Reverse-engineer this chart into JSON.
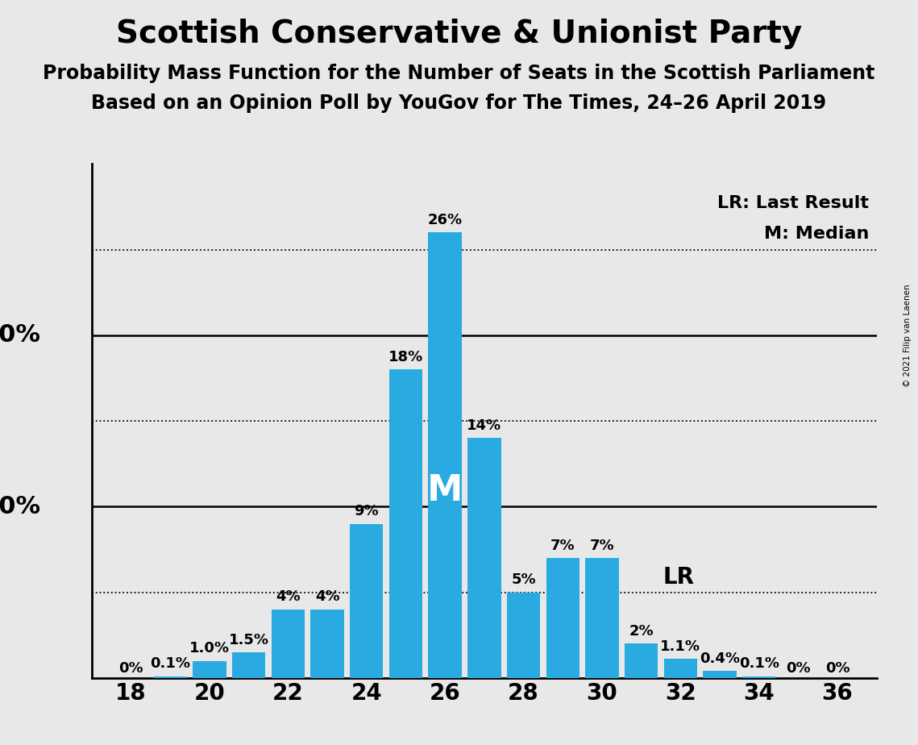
{
  "title": "Scottish Conservative & Unionist Party",
  "subtitle1": "Probability Mass Function for the Number of Seats in the Scottish Parliament",
  "subtitle2": "Based on an Opinion Poll by YouGov for The Times, 24–26 April 2019",
  "copyright": "© 2021 Filip van Laenen",
  "seats": [
    18,
    19,
    20,
    21,
    22,
    23,
    24,
    25,
    26,
    27,
    28,
    29,
    30,
    31,
    32,
    33,
    34,
    35,
    36
  ],
  "probabilities": [
    0.0,
    0.1,
    1.0,
    1.5,
    4.0,
    4.0,
    9.0,
    18.0,
    26.0,
    14.0,
    5.0,
    7.0,
    7.0,
    2.0,
    1.1,
    0.4,
    0.1,
    0.0,
    0.0
  ],
  "labels": [
    "0%",
    "0.1%",
    "1.0%",
    "1.5%",
    "4%",
    "4%",
    "9%",
    "18%",
    "26%",
    "14%",
    "5%",
    "7%",
    "7%",
    "2%",
    "1.1%",
    "0.4%",
    "0.1%",
    "0%",
    "0%"
  ],
  "bar_color": "#29ABE2",
  "background_color": "#E8E8E8",
  "median_seat": 26,
  "last_result_seat": 31,
  "dotted_lines": [
    5.0,
    15.0,
    25.0
  ],
  "solid_lines": [
    10.0,
    20.0
  ],
  "xlim": [
    17.0,
    37.0
  ],
  "ylim": [
    0,
    30
  ],
  "xticks": [
    18,
    20,
    22,
    24,
    26,
    28,
    30,
    32,
    34,
    36
  ],
  "title_fontsize": 28,
  "subtitle_fontsize": 17,
  "axis_tick_fontsize": 20,
  "bar_label_fontsize": 13,
  "legend_fontsize": 16,
  "ylabel_fontsize": 22,
  "M_fontsize": 32,
  "LR_fontsize": 20
}
